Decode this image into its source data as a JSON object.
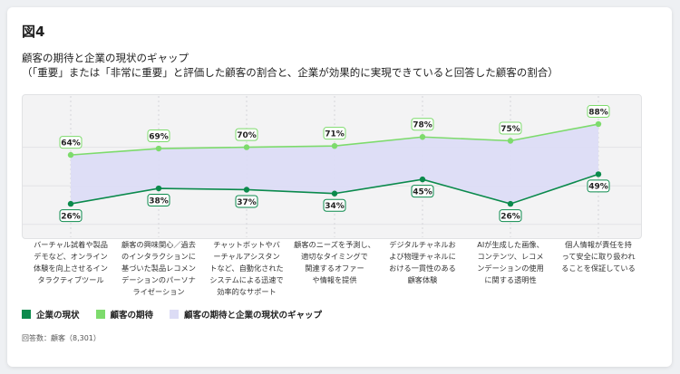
{
  "figure_label": "図4",
  "title": "顧客の期待と企業の現状のギャップ",
  "subtitle": "（「重要」または「非常に重要」と評価した顧客の割合と、企業が効果的に実現できていると回答した顧客の割合）",
  "note": "回答数：顧客（8,301）",
  "colors": {
    "current": "#0b8a4c",
    "expectation": "#7ddb6c",
    "gap": "#dcdcf5"
  },
  "chart_data": {
    "type": "line",
    "categories": [
      "バーチャル試着や製品デモなど、オンライン体験を向上させるインタラクティブツール",
      "顧客の興味関心／過去のインタラクションに基づいた製品レコメンデーションのパーソナライゼーション",
      "チャットボットやバーチャルアシスタントなど、自動化されたシステムによる迅速で効率的なサポート",
      "顧客のニーズを予測し、適切なタイミングで関連するオファーや情報を提供",
      "デジタルチャネルおよび物理チャネルにおける一貫性のある顧客体験",
      "AIが生成した画像、コンテンツ、レコメンデーションの使用に関する透明性",
      "個人情報が責任を持って安全に取り扱われることを保証している"
    ],
    "category_lines": [
      [
        "バーチャル試着や製品",
        "デモなど、オンライン",
        "体験を向上させるイン",
        "タラクティブツール"
      ],
      [
        "顧客の興味関心／過去",
        "のインタラクションに",
        "基づいた製品レコメン",
        "デーションのパーソナ",
        "ライゼーション"
      ],
      [
        "チャットボットやバ",
        "ーチャルアシスタン",
        "トなど、自動化された",
        "システムによる迅速で",
        "効率的なサポート"
      ],
      [
        "顧客のニーズを予測し、",
        "適切なタイミングで",
        "関連するオファー",
        "や情報を提供"
      ],
      [
        "デジタルチャネルお",
        "よび物理チャネルに",
        "おける一貫性のある",
        "顧客体験"
      ],
      [
        "AIが生成した画像、",
        "コンテンツ、レコメ",
        "ンデーションの使用",
        "に関する透明性"
      ],
      [
        "個人情報が責任を持",
        "って安全に取り扱われ",
        "ることを保証している"
      ]
    ],
    "series": [
      {
        "name": "企業の現状",
        "values": [
          26,
          38,
          37,
          34,
          45,
          26,
          49
        ],
        "labels": [
          "26%",
          "38%",
          "37%",
          "34%",
          "45%",
          "26%",
          "49%"
        ]
      },
      {
        "name": "顧客の期待",
        "values": [
          64,
          69,
          70,
          71,
          78,
          75,
          88
        ],
        "labels": [
          "64%",
          "69%",
          "70%",
          "71%",
          "78%",
          "75%",
          "88%"
        ]
      }
    ],
    "gap_legend": "顧客の期待と企業の現状のギャップ",
    "ylim": [
      0,
      100
    ],
    "grid": true,
    "legend_position": "bottom-left"
  }
}
